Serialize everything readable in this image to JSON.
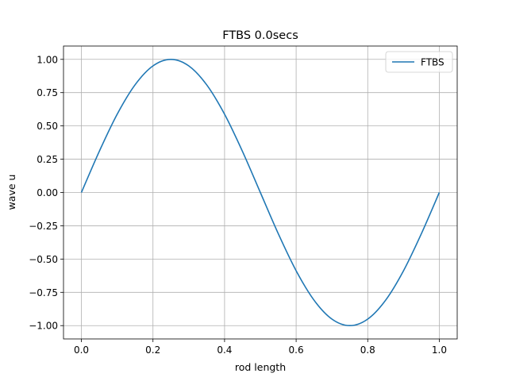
{
  "chart_data": {
    "type": "line",
    "title": "FTBS 0.0secs",
    "xlabel": "rod length",
    "ylabel": "wave u",
    "xlim": [
      -0.05,
      1.05
    ],
    "ylim": [
      -1.1,
      1.1
    ],
    "xticks": [
      0.0,
      0.2,
      0.4,
      0.6,
      0.8,
      1.0
    ],
    "xtick_labels": [
      "0.0",
      "0.2",
      "0.4",
      "0.6",
      "0.8",
      "1.0"
    ],
    "yticks": [
      -1.0,
      -0.75,
      -0.5,
      -0.25,
      0.0,
      0.25,
      0.5,
      0.75,
      1.0
    ],
    "ytick_labels": [
      "−1.00",
      "−0.75",
      "−0.50",
      "−0.25",
      "0.00",
      "0.25",
      "0.50",
      "0.75",
      "1.00"
    ],
    "grid": true,
    "legend_position": "top-right",
    "series": [
      {
        "name": "FTBS",
        "color": "#1f77b4",
        "x": [
          0.0,
          0.05,
          0.1,
          0.15,
          0.2,
          0.25,
          0.3,
          0.35,
          0.4,
          0.45,
          0.5,
          0.55,
          0.6,
          0.65,
          0.7,
          0.75,
          0.8,
          0.85,
          0.9,
          0.95,
          1.0
        ],
        "y": [
          0.0,
          0.309,
          0.588,
          0.809,
          0.951,
          1.0,
          0.951,
          0.809,
          0.588,
          0.309,
          0.0,
          -0.309,
          -0.588,
          -0.809,
          -0.951,
          -1.0,
          -0.951,
          -0.809,
          -0.588,
          -0.309,
          0.0
        ]
      }
    ]
  }
}
